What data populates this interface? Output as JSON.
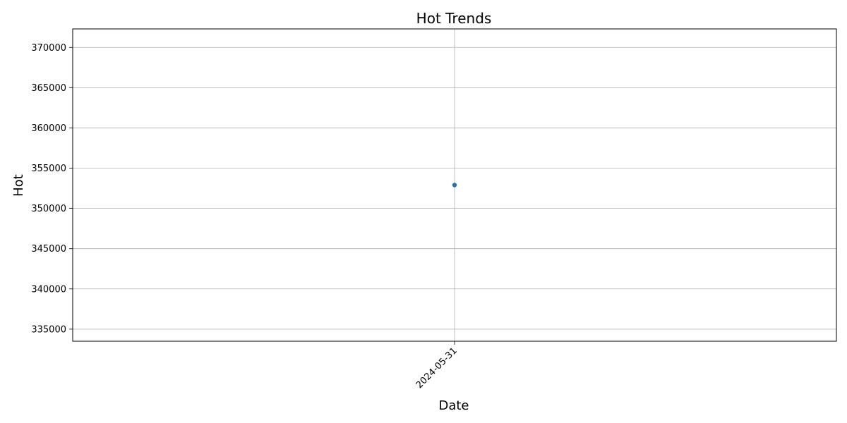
{
  "chart_data": {
    "type": "line",
    "title": "Hot Trends",
    "xlabel": "Date",
    "ylabel": "Hot",
    "x": [
      "2024-05-31"
    ],
    "series": [
      {
        "values": [
          352900
        ],
        "marker": "circle"
      }
    ],
    "ylim": [
      333500,
      372300
    ],
    "yticks": [
      335000,
      340000,
      345000,
      350000,
      355000,
      360000,
      365000,
      370000
    ],
    "xticks": [
      "2024-05-31"
    ],
    "xtick_rotation": -45,
    "grid": true,
    "colors": {
      "series": "#1f77b4",
      "grid": "#b0b0b0",
      "axes": "#000000"
    }
  }
}
